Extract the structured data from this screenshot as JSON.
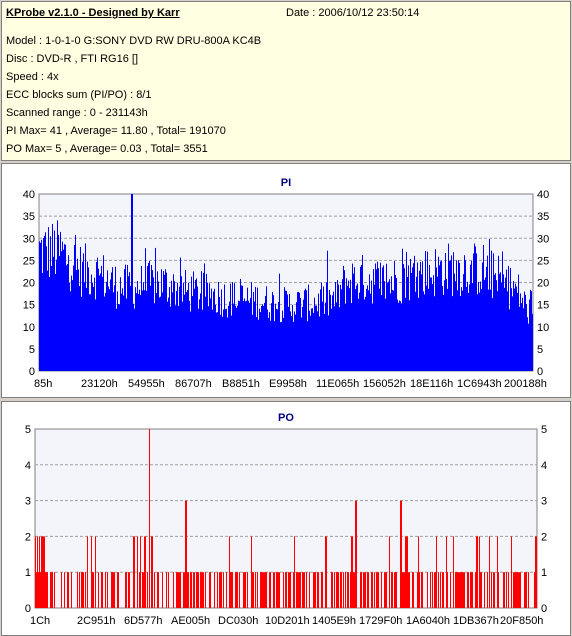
{
  "header": {
    "title": "KProbe v2.1.0 - Designed by Karr",
    "date": "Date : 2006/10/12 23:50:14",
    "lines": [
      "Model : 1-0-1-0 G:SONY    DVD RW DRU-800A  KC4B",
      "Disc : DVD-R , FTI RG16 []",
      "Speed : 4x",
      "ECC blocks sum (PI/PO) : 8/1",
      "Scanned range : 0 - 231143h",
      "PI Max= 41 , Average= 11.80 , Total= 191070",
      "PO Max= 5 , Average= 0.03 , Total= 3551"
    ]
  },
  "chart_data": [
    {
      "type": "bar",
      "title": "PI",
      "ylim": [
        0,
        40
      ],
      "yticks": [
        0,
        5,
        10,
        15,
        20,
        25,
        30,
        35,
        40
      ],
      "xtick_labels": [
        "85h",
        "23120h",
        "54955h",
        "86707h",
        "B8851h",
        "E9958h",
        "11E065h",
        "156052h",
        "18E116h",
        "1C6943h",
        "200188h"
      ],
      "color": "#0000ff",
      "grid": true,
      "profile": [
        [
          0,
          27
        ],
        [
          0.04,
          27
        ],
        [
          0.08,
          23
        ],
        [
          0.12,
          22
        ],
        [
          0.16,
          19
        ],
        [
          0.2,
          19
        ],
        [
          0.24,
          20
        ],
        [
          0.3,
          18
        ],
        [
          0.36,
          17
        ],
        [
          0.4,
          16
        ],
        [
          0.44,
          16
        ],
        [
          0.48,
          15
        ],
        [
          0.52,
          15
        ],
        [
          0.6,
          16
        ],
        [
          0.62,
          20
        ],
        [
          0.66,
          21
        ],
        [
          0.7,
          20
        ],
        [
          0.74,
          21
        ],
        [
          0.78,
          22
        ],
        [
          0.82,
          23
        ],
        [
          0.86,
          23
        ],
        [
          0.9,
          23
        ],
        [
          0.94,
          20
        ],
        [
          0.97,
          18
        ],
        [
          1.0,
          12
        ]
      ],
      "max": 41,
      "average": 11.8
    },
    {
      "type": "bar",
      "title": "PO",
      "ylim": [
        0,
        5
      ],
      "yticks": [
        0,
        1,
        2,
        3,
        4,
        5
      ],
      "xtick_labels": [
        "1Ch",
        "2C951h",
        "6D577h",
        "AE005h",
        "DC030h",
        "10D201h",
        "1405E9h",
        "1729F0h",
        "1A6040h",
        "1DB367h",
        "20F850h"
      ],
      "color": "#ff0000",
      "grid": true,
      "max": 5,
      "average": 0.03,
      "peaks": [
        [
          0.228,
          5
        ],
        [
          0.233,
          2
        ],
        [
          0.3,
          3
        ],
        [
          0.58,
          2
        ],
        [
          0.64,
          3
        ],
        [
          0.73,
          3
        ],
        [
          0.74,
          2
        ],
        [
          0.8,
          2
        ],
        [
          0.88,
          2
        ]
      ]
    }
  ]
}
